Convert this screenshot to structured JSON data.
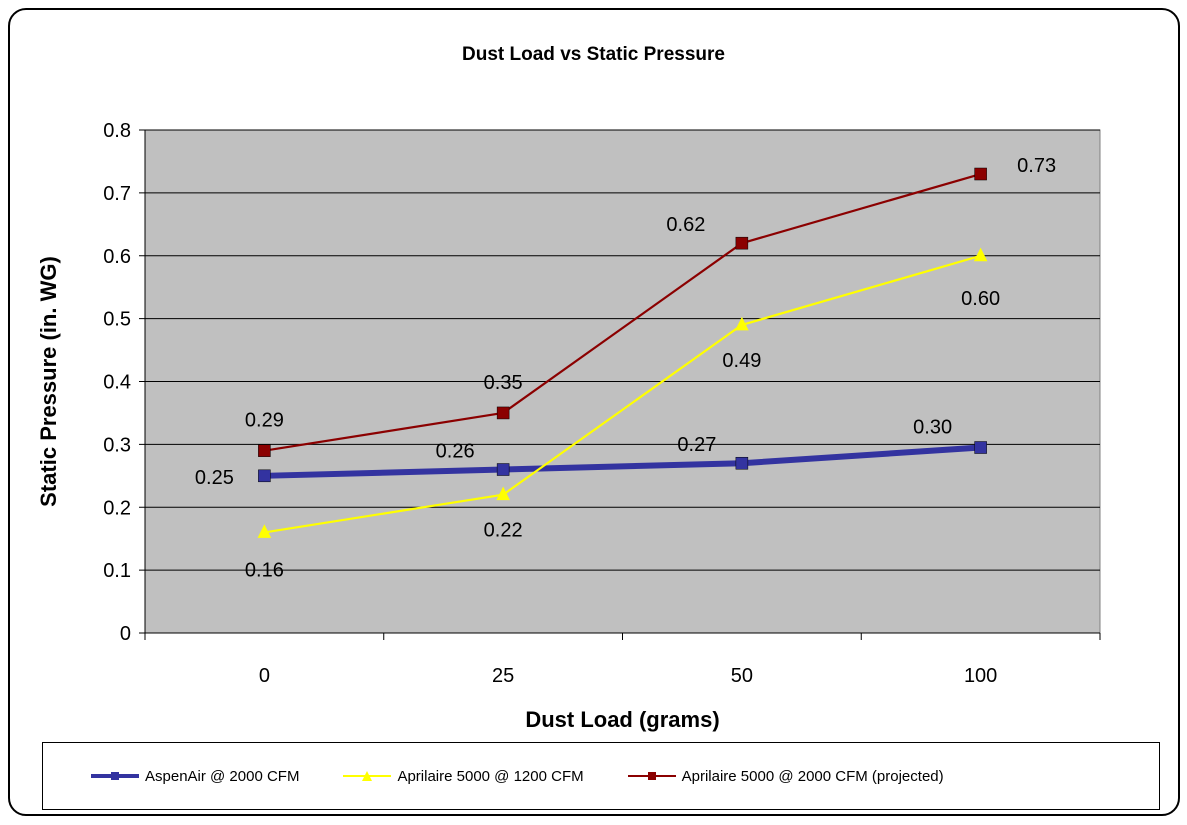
{
  "chart_data": {
    "type": "line",
    "title": "Dust Load vs Static Pressure",
    "xlabel": "Dust Load (grams)",
    "ylabel": "Static Pressure (in. WG)",
    "categories": [
      "0",
      "25",
      "50",
      "100"
    ],
    "ylim": [
      0,
      0.8
    ],
    "yticks": [
      "0",
      "0.1",
      "0.2",
      "0.3",
      "0.4",
      "0.5",
      "0.6",
      "0.7",
      "0.8"
    ],
    "grid": true,
    "legend_position": "bottom",
    "plot_background": "#c0c0c0",
    "series": [
      {
        "name": "AspenAir @ 2000 CFM",
        "values": [
          0.25,
          0.26,
          0.27,
          0.295
        ],
        "labels": [
          "0.25",
          "0.26",
          "0.27",
          "0.30"
        ],
        "color": "#3333a0",
        "marker": "square",
        "width": "thick"
      },
      {
        "name": "Aprilaire 5000 @ 1200 CFM",
        "values": [
          0.16,
          0.22,
          0.49,
          0.6
        ],
        "labels": [
          "0.16",
          "0.22",
          "0.49",
          "0.60"
        ],
        "color": "#ffff00",
        "marker": "triangle",
        "width": "thin"
      },
      {
        "name": "Aprilaire 5000 @ 2000 CFM (projected)",
        "values": [
          0.29,
          0.35,
          0.62,
          0.73
        ],
        "labels": [
          "0.29",
          "0.35",
          "0.62",
          "0.73"
        ],
        "color": "#8b0000",
        "marker": "square",
        "width": "thin"
      }
    ]
  }
}
